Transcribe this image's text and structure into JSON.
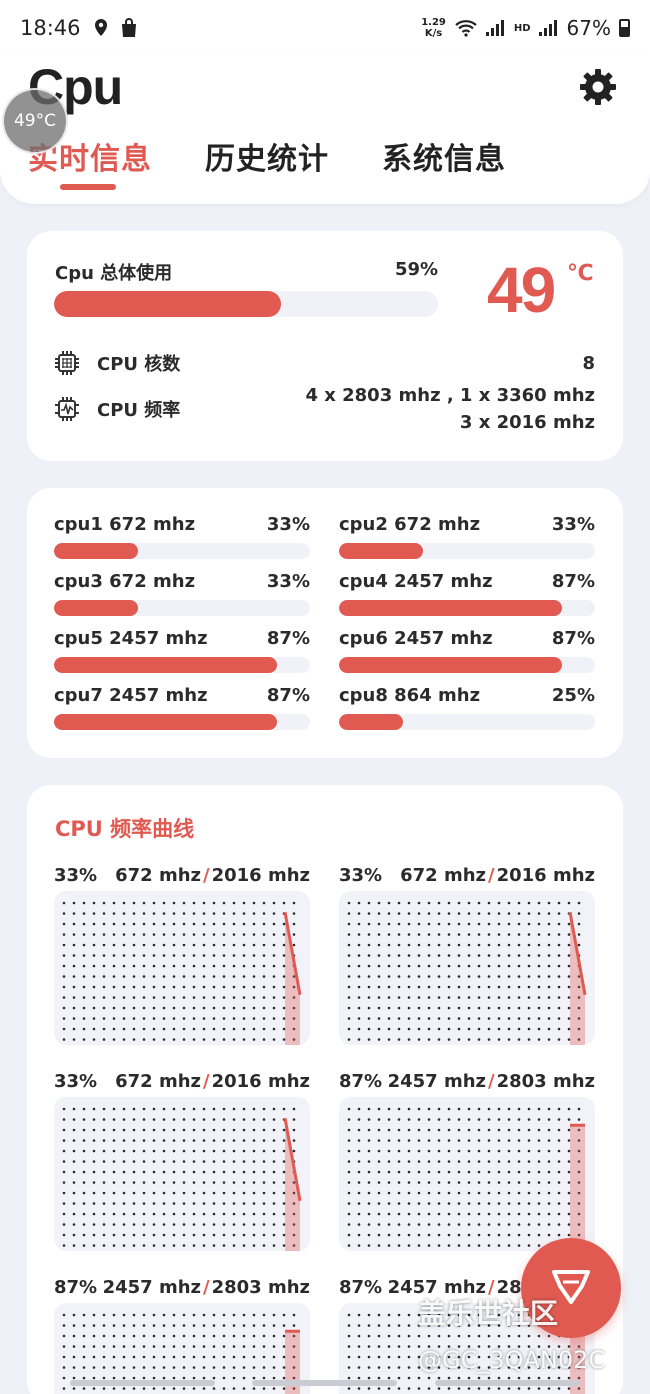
{
  "status_bar": {
    "time": "18:46",
    "net_speed_value": "1.29",
    "net_speed_unit": "K/s",
    "battery": "67%",
    "icons": [
      "location-icon",
      "shopping-bag-icon",
      "wifi-icon",
      "signal-icon",
      "hd-icon",
      "4g-icon",
      "battery-icon"
    ]
  },
  "header": {
    "title": "Cpu",
    "temp_bubble": "49°C",
    "tabs": [
      {
        "label": "实时信息",
        "active": true
      },
      {
        "label": "历史统计",
        "active": false
      },
      {
        "label": "系统信息",
        "active": false
      }
    ]
  },
  "overview": {
    "usage_label": "Cpu 总体使用",
    "usage_pct": "59%",
    "usage_value": 0.59,
    "temperature": "49",
    "temperature_unit": "℃",
    "cores_label": "CPU 核数",
    "cores_value": "8",
    "freq_label": "CPU 频率",
    "freq_line1": "4 x 2803 mhz , 1 x 3360 mhz",
    "freq_line2": "3 x 2016 mhz"
  },
  "cores": [
    {
      "name": "cpu1  672 mhz",
      "pct": "33%",
      "value": 0.33
    },
    {
      "name": "cpu2  672 mhz",
      "pct": "33%",
      "value": 0.33
    },
    {
      "name": "cpu3  672 mhz",
      "pct": "33%",
      "value": 0.33
    },
    {
      "name": "cpu4  2457 mhz",
      "pct": "87%",
      "value": 0.87
    },
    {
      "name": "cpu5  2457 mhz",
      "pct": "87%",
      "value": 0.87
    },
    {
      "name": "cpu6  2457 mhz",
      "pct": "87%",
      "value": 0.87
    },
    {
      "name": "cpu7  2457 mhz",
      "pct": "87%",
      "value": 0.87
    },
    {
      "name": "cpu8  864 mhz",
      "pct": "25%",
      "value": 0.25
    }
  ],
  "curves": {
    "title": "CPU 频率曲线",
    "graphs": [
      {
        "pct": "33%",
        "cur": "672 mhz",
        "max": "2016 mhz",
        "start": 0.92,
        "end": 0.33
      },
      {
        "pct": "33%",
        "cur": "672 mhz",
        "max": "2016 mhz",
        "start": 0.92,
        "end": 0.33
      },
      {
        "pct": "33%",
        "cur": "672 mhz",
        "max": "2016 mhz",
        "start": 0.92,
        "end": 0.33
      },
      {
        "pct": "87%",
        "cur": "2457 mhz",
        "max": "2803 mhz",
        "start": 0.87,
        "end": 0.87
      },
      {
        "pct": "87%",
        "cur": "2457 mhz",
        "max": "2803 mhz",
        "start": 0.87,
        "end": 0.87
      },
      {
        "pct": "87%",
        "cur": "2457 mhz",
        "max": "2803 mhz",
        "start": 0.87,
        "end": 0.87
      }
    ]
  },
  "watermark": {
    "line1": "盖乐世社区",
    "line2": "@GC_3QAN02C"
  },
  "colors": {
    "accent": "#e05a52",
    "track": "#f0f2f8",
    "background": "#eef1f8"
  }
}
